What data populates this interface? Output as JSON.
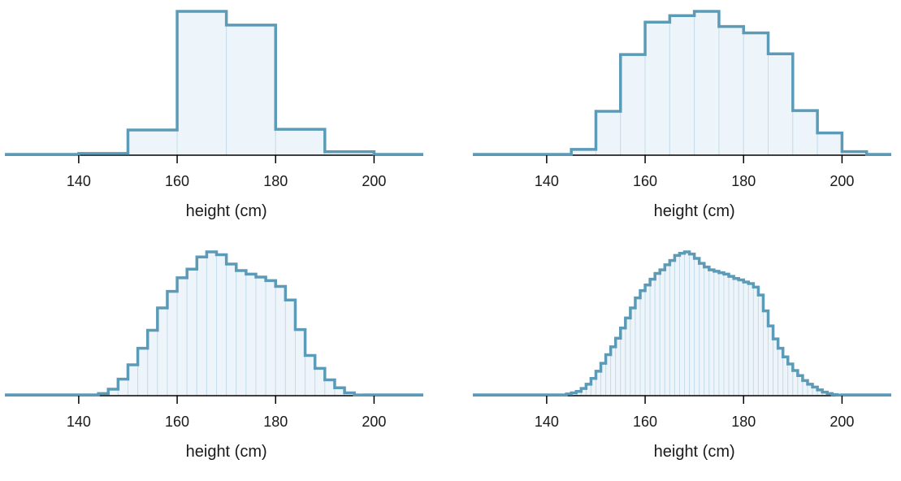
{
  "chart_data": [
    {
      "type": "histogram",
      "xlabel": "height (cm)",
      "ylabel": "",
      "title": "",
      "xlim": [
        125,
        210
      ],
      "ticks": [
        140,
        160,
        180,
        200
      ],
      "bin_width": 10,
      "bin_start": 140,
      "values": [
        0.012,
        0.175,
        1.0,
        0.905,
        0.18,
        0.024
      ],
      "grid": false,
      "color": "#5b9bb7"
    },
    {
      "type": "histogram",
      "xlabel": "height (cm)",
      "ylabel": "",
      "title": "",
      "xlim": [
        125,
        210
      ],
      "ticks": [
        140,
        160,
        180,
        200
      ],
      "bin_width": 5,
      "bin_start": 145,
      "values": [
        0.04,
        0.305,
        0.7,
        0.925,
        0.97,
        1.0,
        0.895,
        0.85,
        0.705,
        0.31,
        0.155,
        0.025
      ],
      "grid": false,
      "color": "#5b9bb7"
    },
    {
      "type": "histogram",
      "xlabel": "height (cm)",
      "ylabel": "",
      "title": "",
      "xlim": [
        125,
        210
      ],
      "ticks": [
        140,
        160,
        180,
        200
      ],
      "bin_width": 2,
      "bin_start": 144,
      "values": [
        0.015,
        0.045,
        0.115,
        0.215,
        0.33,
        0.455,
        0.61,
        0.725,
        0.82,
        0.88,
        0.965,
        1.0,
        0.98,
        0.915,
        0.87,
        0.845,
        0.825,
        0.8,
        0.76,
        0.665,
        0.46,
        0.28,
        0.19,
        0.11,
        0.055,
        0.02,
        0.005
      ],
      "grid": false,
      "color": "#5b9bb7"
    },
    {
      "type": "histogram",
      "xlabel": "height (cm)",
      "ylabel": "",
      "title": "",
      "xlim": [
        125,
        210
      ],
      "ticks": [
        140,
        160,
        180,
        200
      ],
      "bin_width": 1,
      "bin_start": 144,
      "values": [
        0.012,
        0.02,
        0.03,
        0.05,
        0.08,
        0.12,
        0.17,
        0.225,
        0.285,
        0.34,
        0.4,
        0.47,
        0.54,
        0.61,
        0.68,
        0.73,
        0.77,
        0.81,
        0.85,
        0.875,
        0.91,
        0.94,
        0.975,
        0.99,
        1.0,
        0.985,
        0.955,
        0.92,
        0.895,
        0.875,
        0.865,
        0.855,
        0.845,
        0.83,
        0.815,
        0.805,
        0.79,
        0.78,
        0.755,
        0.7,
        0.59,
        0.485,
        0.395,
        0.33,
        0.27,
        0.22,
        0.175,
        0.14,
        0.105,
        0.08,
        0.06,
        0.04,
        0.025,
        0.015,
        0.008,
        0.004
      ],
      "grid": false,
      "color": "#5b9bb7"
    }
  ]
}
